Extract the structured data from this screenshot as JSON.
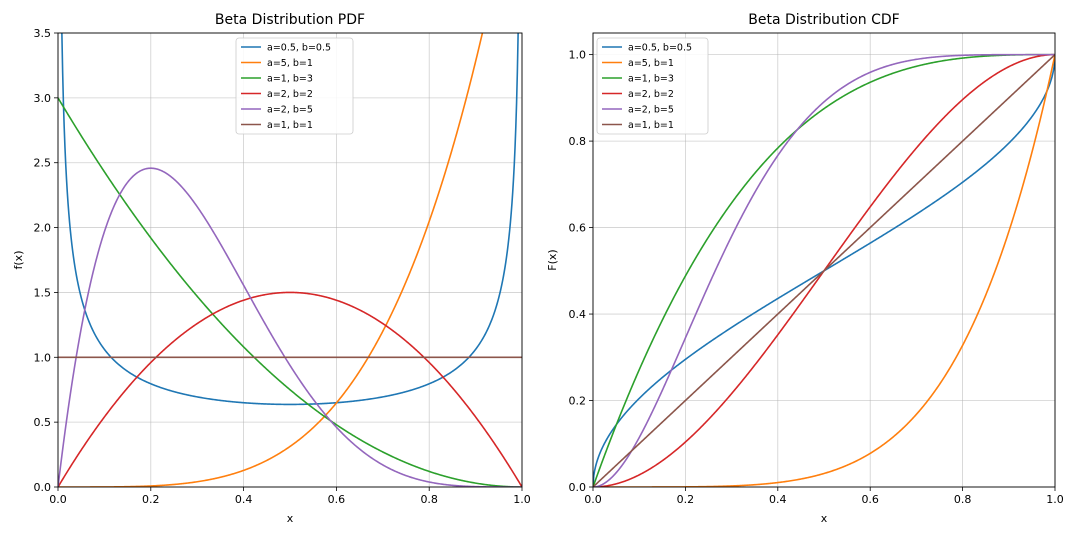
{
  "chart_data": [
    {
      "type": "line",
      "kind": "pdf",
      "title": "Beta Distribution PDF",
      "xlabel": "x",
      "ylabel": "f(x)",
      "xlim": [
        0,
        1
      ],
      "ylim": [
        0,
        3.5
      ],
      "xticks": [
        0,
        0.2,
        0.4,
        0.6,
        0.8,
        1.0
      ],
      "xtick_labels": [
        "0.0",
        "0.2",
        "0.4",
        "0.6",
        "0.8",
        "1.0"
      ],
      "yticks": [
        0,
        0.5,
        1.0,
        1.5,
        2.0,
        2.5,
        3.0,
        3.5
      ],
      "ytick_labels": [
        "0.0",
        "0.5",
        "1.0",
        "1.5",
        "2.0",
        "2.5",
        "3.0",
        "3.5"
      ],
      "grid": true,
      "legend_position": "top-center",
      "series": [
        {
          "name": "a=0.5, b=0.5",
          "a": 0.5,
          "b": 0.5,
          "color": "#1f77b4"
        },
        {
          "name": "a=5, b=1",
          "a": 5,
          "b": 1,
          "color": "#ff7f0e"
        },
        {
          "name": "a=1, b=3",
          "a": 1,
          "b": 3,
          "color": "#2ca02c"
        },
        {
          "name": "a=2, b=2",
          "a": 2,
          "b": 2,
          "color": "#d62728"
        },
        {
          "name": "a=2, b=5",
          "a": 2,
          "b": 5,
          "color": "#9467bd"
        },
        {
          "name": "a=1, b=1",
          "a": 1,
          "b": 1,
          "color": "#8c564b"
        }
      ]
    },
    {
      "type": "line",
      "kind": "cdf",
      "title": "Beta Distribution CDF",
      "xlabel": "x",
      "ylabel": "F(x)",
      "xlim": [
        0,
        1
      ],
      "ylim": [
        0,
        1.05
      ],
      "xticks": [
        0,
        0.2,
        0.4,
        0.6,
        0.8,
        1.0
      ],
      "xtick_labels": [
        "0.0",
        "0.2",
        "0.4",
        "0.6",
        "0.8",
        "1.0"
      ],
      "yticks": [
        0,
        0.2,
        0.4,
        0.6,
        0.8,
        1.0
      ],
      "ytick_labels": [
        "0.0",
        "0.2",
        "0.4",
        "0.6",
        "0.8",
        "1.0"
      ],
      "grid": true,
      "legend_position": "top-left",
      "series": [
        {
          "name": "a=0.5, b=0.5",
          "a": 0.5,
          "b": 0.5,
          "color": "#1f77b4"
        },
        {
          "name": "a=5, b=1",
          "a": 5,
          "b": 1,
          "color": "#ff7f0e"
        },
        {
          "name": "a=1, b=3",
          "a": 1,
          "b": 3,
          "color": "#2ca02c"
        },
        {
          "name": "a=2, b=2",
          "a": 2,
          "b": 2,
          "color": "#d62728"
        },
        {
          "name": "a=2, b=5",
          "a": 2,
          "b": 5,
          "color": "#9467bd"
        },
        {
          "name": "a=1, b=1",
          "a": 1,
          "b": 1,
          "color": "#8c564b"
        }
      ]
    }
  ]
}
